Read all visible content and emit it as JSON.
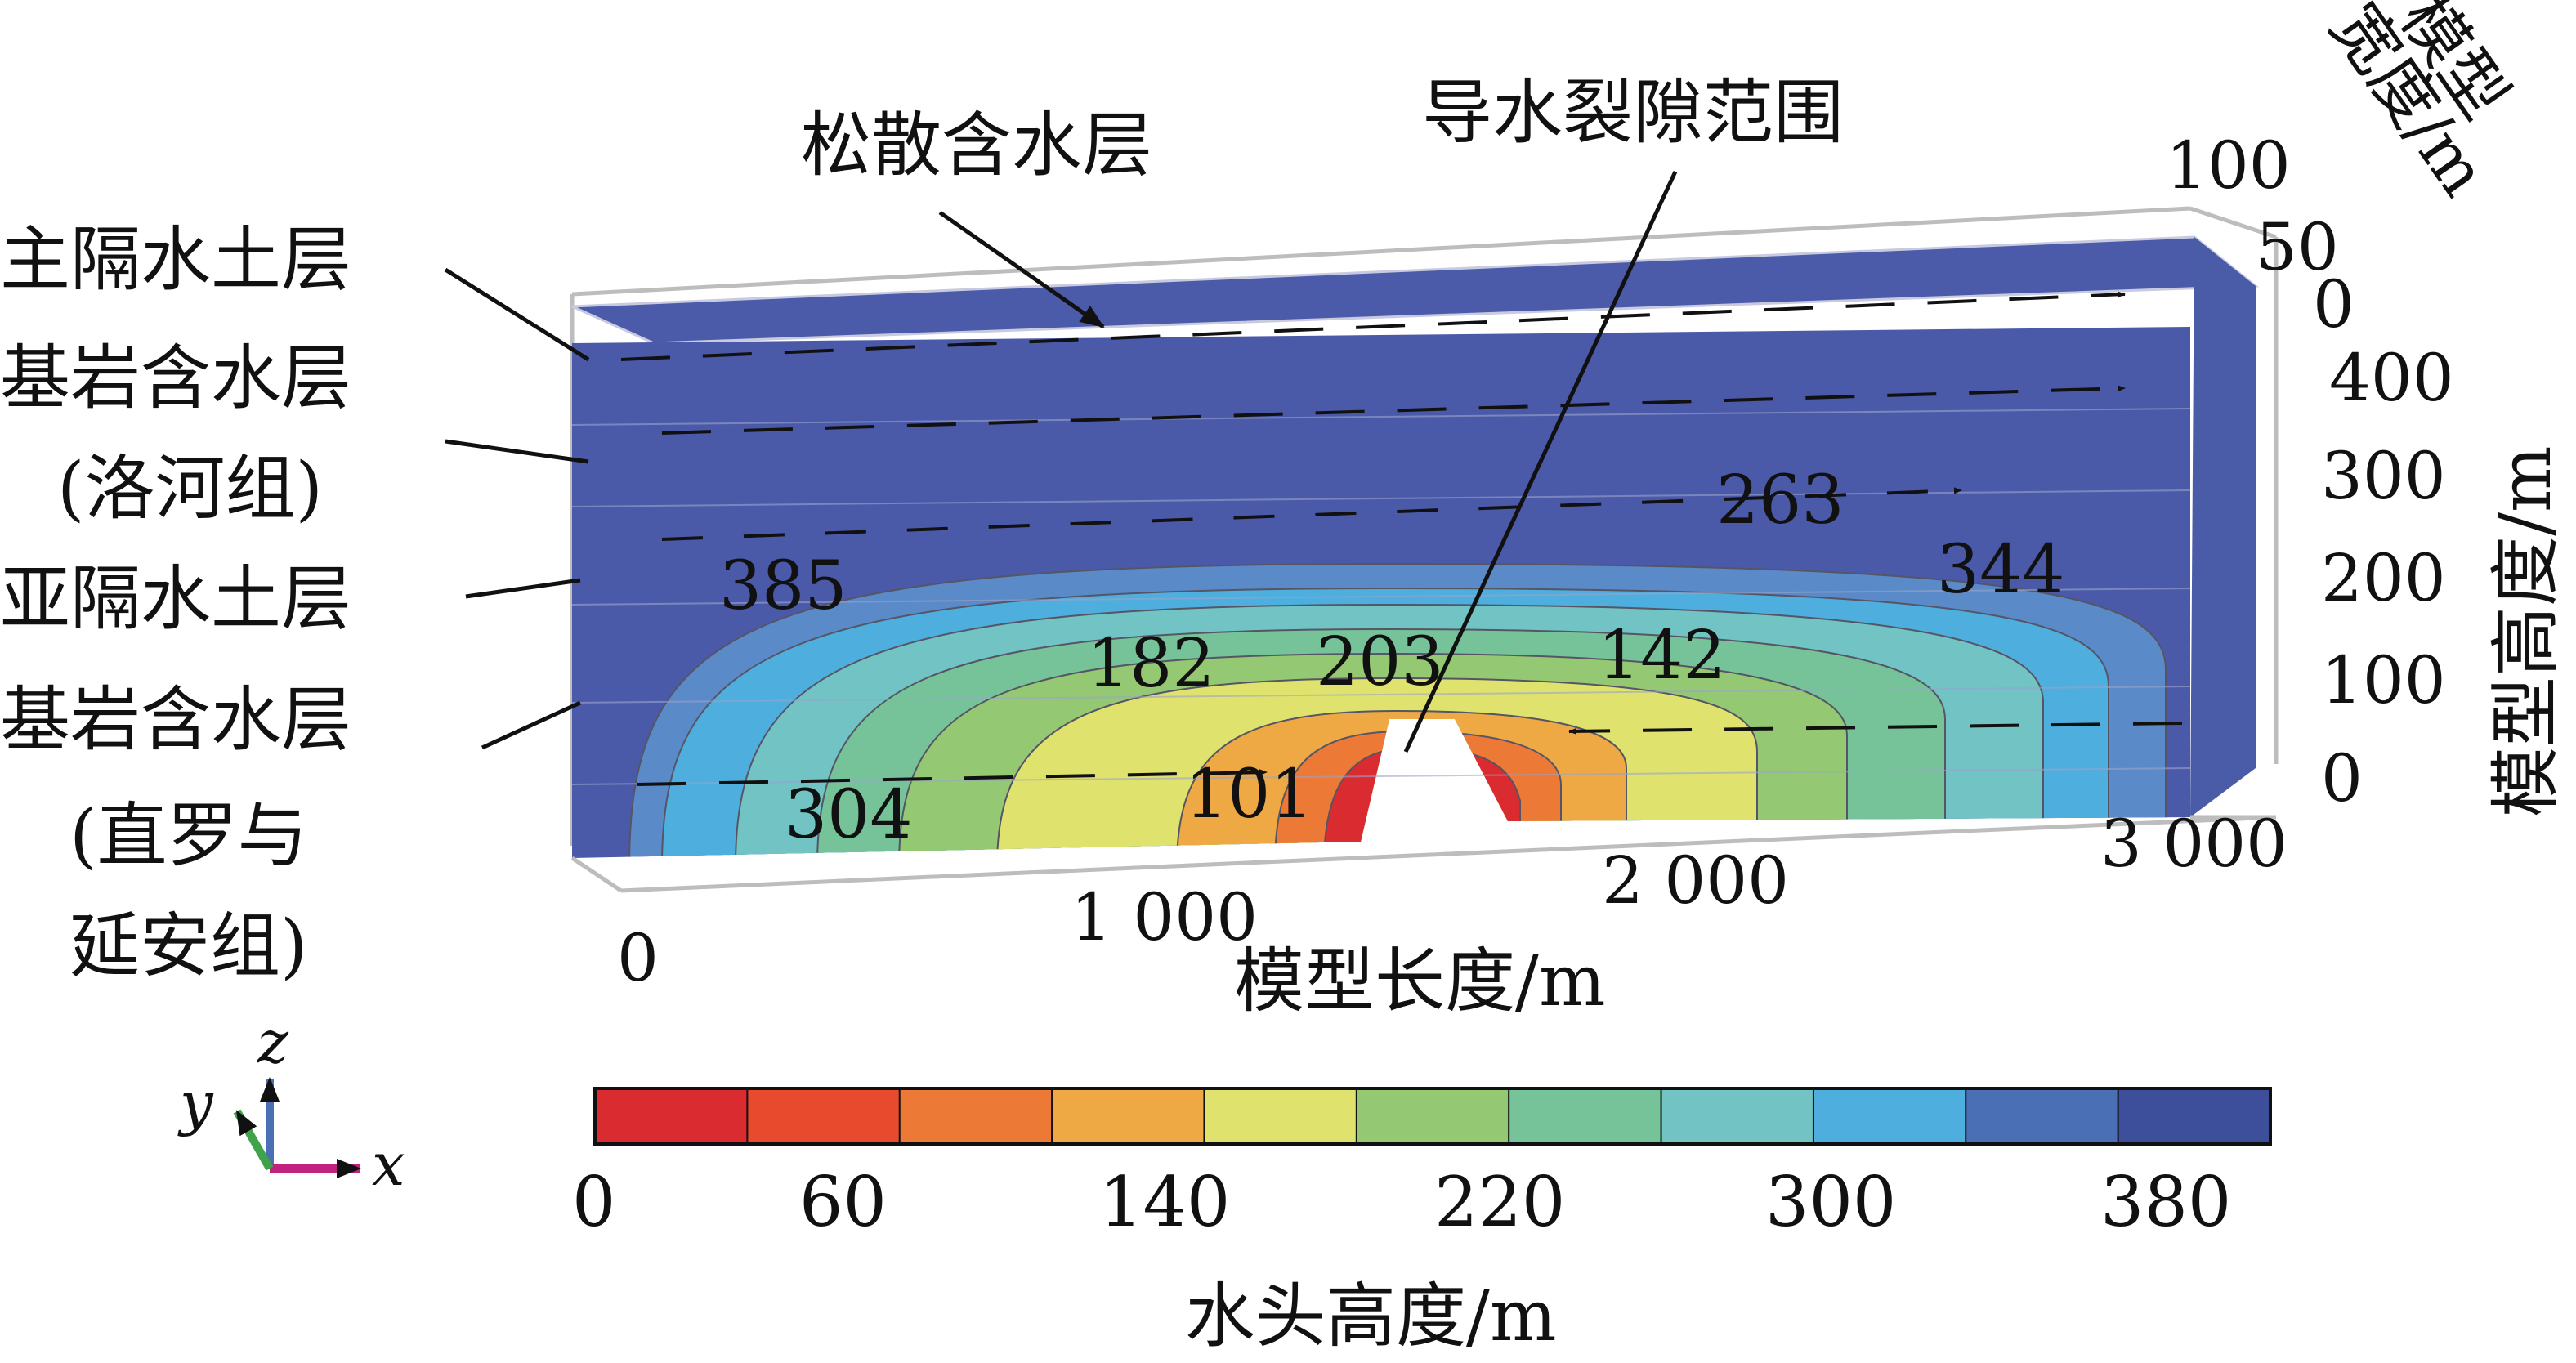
{
  "labels": {
    "loose_aquifer": "松散含水层",
    "fracture_zone": "导水裂隙范围",
    "main_aquiclude": "主隔水土层",
    "bedrock_luohe_1": "基岩含水层",
    "bedrock_luohe_2": "(洛河组)",
    "sub_aquiclude": "亚隔水土层",
    "bedrock_zhiluo_1": "基岩含水层",
    "bedrock_zhiluo_2": "(直罗与",
    "bedrock_zhiluo_3": "延安组)"
  },
  "contour_values": [
    "385",
    "263",
    "344",
    "182",
    "203",
    "142",
    "101",
    "304"
  ],
  "axes": {
    "x_title": "模型长度/m",
    "x_ticks": [
      "0",
      "1 000",
      "2 000",
      "3 000"
    ],
    "z_title": "模型高度/m",
    "z_ticks": [
      "0",
      "100",
      "200",
      "300",
      "400"
    ],
    "y_title_1": "模型",
    "y_title_2": "宽度/m",
    "y_ticks": [
      "0",
      "50",
      "100"
    ]
  },
  "triad": {
    "z": "z",
    "y": "y",
    "x": "x"
  },
  "colorbar": {
    "title": "水头高度/m",
    "tick_labels": [
      "0",
      "60",
      "140",
      "220",
      "300",
      "380"
    ],
    "colors": [
      "#d92b30",
      "#e84a2e",
      "#ec7a36",
      "#eea844",
      "#dfe36e",
      "#95c872",
      "#76c39a",
      "#72c3c4",
      "#4eaedd",
      "#4a6fb4",
      "#3d4f9a"
    ]
  }
}
